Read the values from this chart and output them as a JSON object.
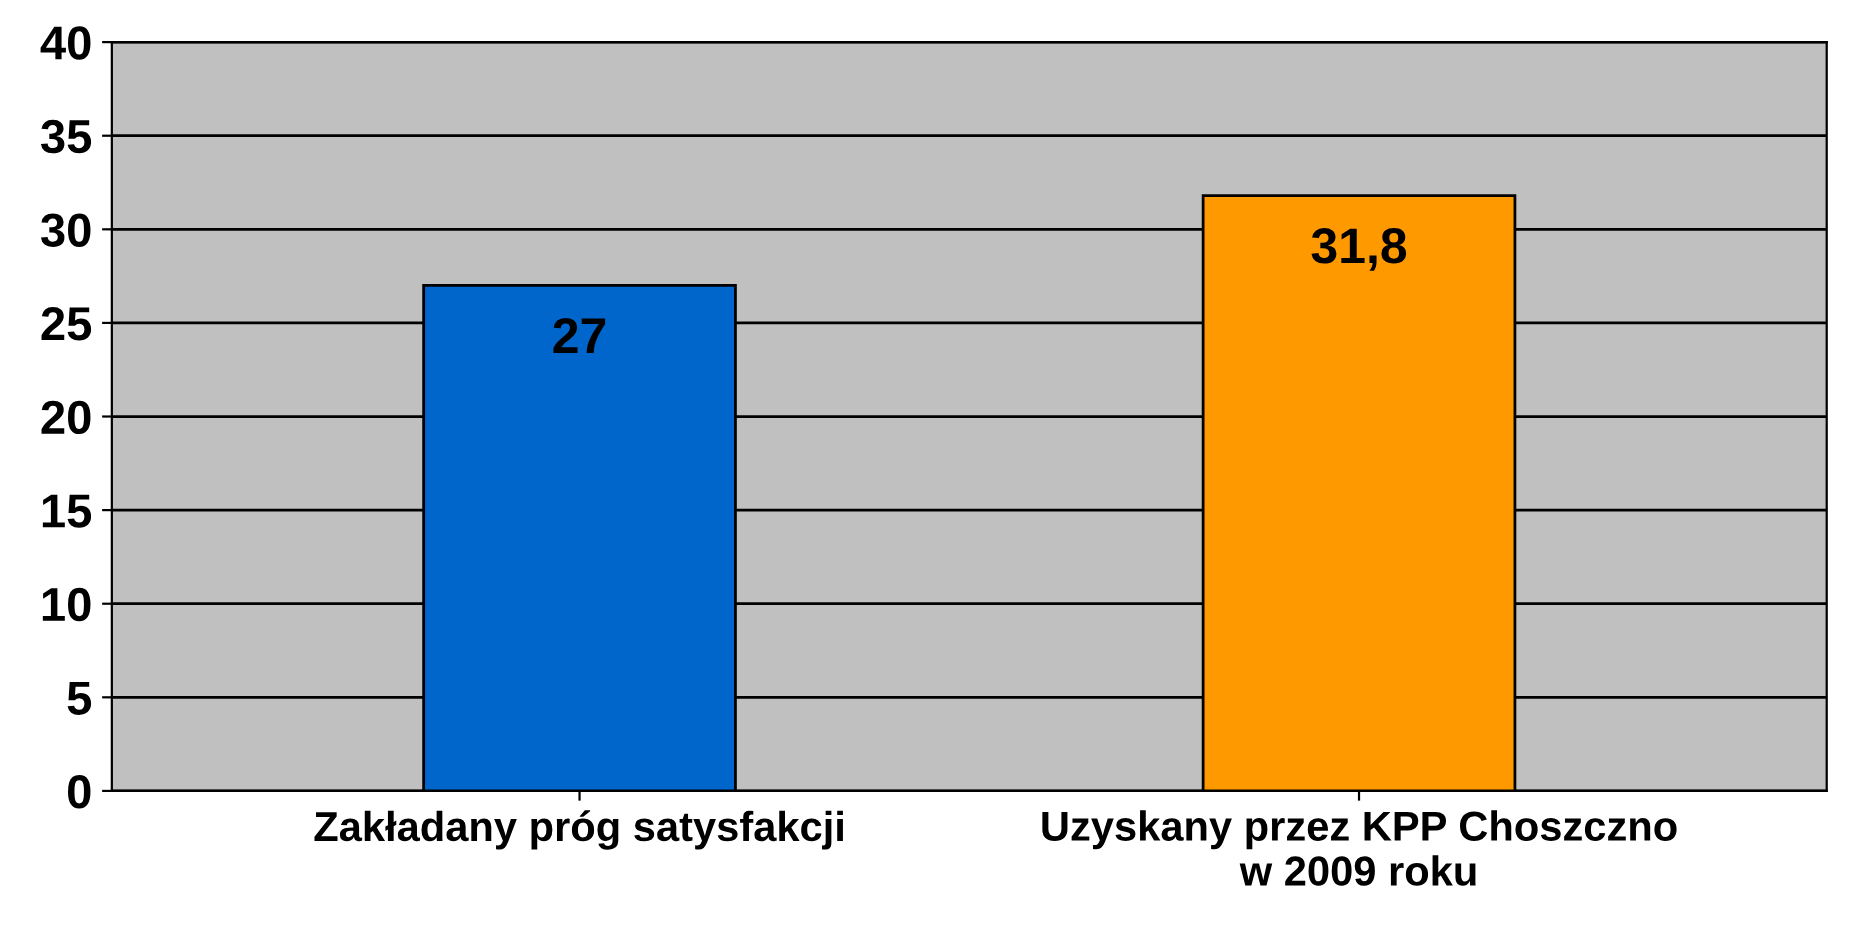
{
  "chart_data": {
    "type": "bar",
    "categories": [
      "Zakładany próg satysfakcji",
      "Uzyskany przez KPP Choszczno\nw 2009 roku"
    ],
    "values": [
      27,
      31.8
    ],
    "colors": [
      "#0066cc",
      "#ff9900"
    ],
    "value_labels": [
      "27",
      "31,8"
    ],
    "ylim": [
      0,
      40
    ],
    "yticks": [
      0,
      5,
      10,
      15,
      20,
      25,
      30,
      35,
      40
    ],
    "grid": "y",
    "legend": false
  }
}
